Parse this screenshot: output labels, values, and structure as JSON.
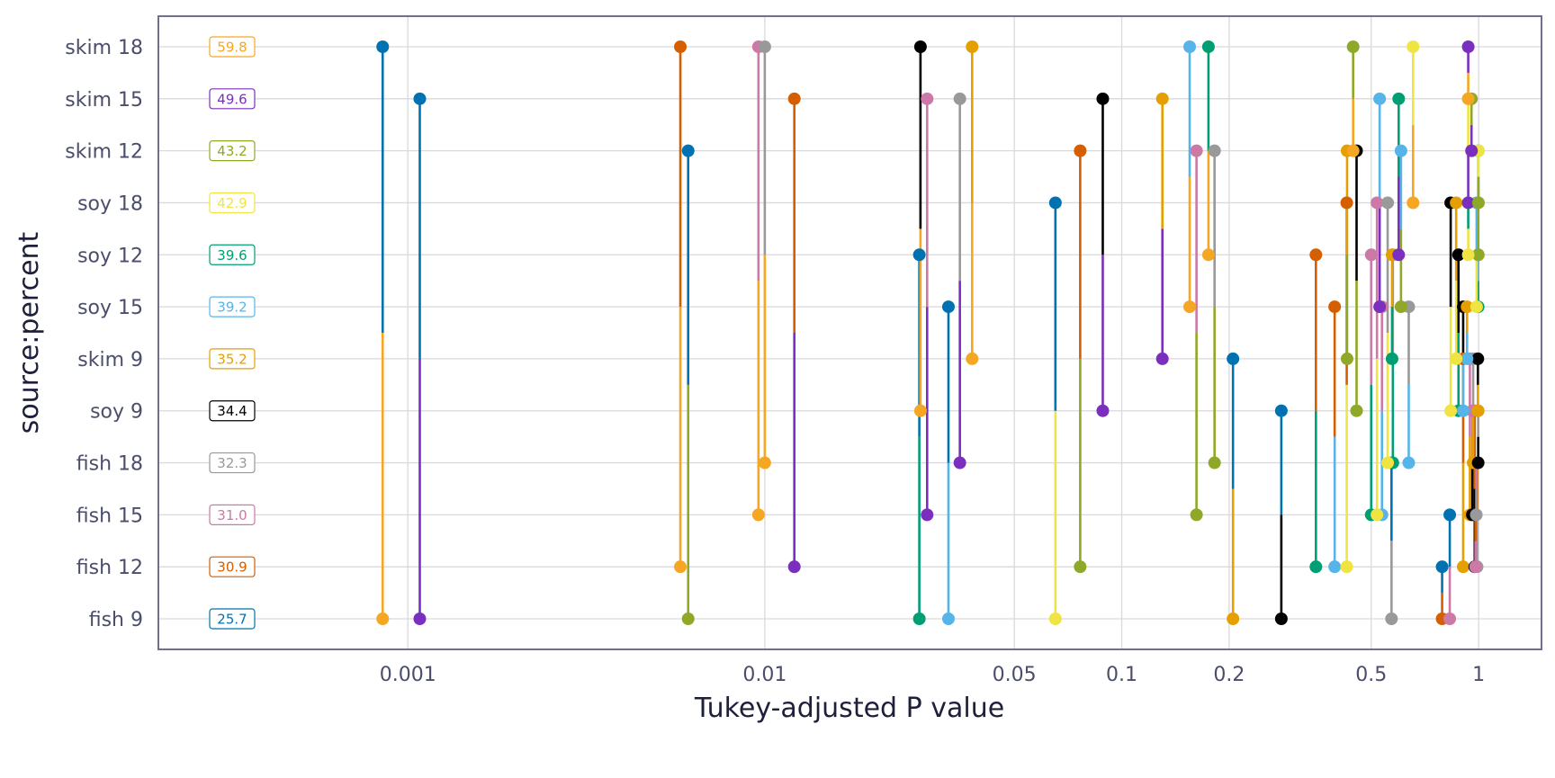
{
  "chart_data": {
    "type": "pairwise-p-value-plot",
    "xlabel": "Tukey-adjusted P value",
    "ylabel": "source:percent",
    "x_scale": "log",
    "xlim": [
      0.0002,
      1.5
    ],
    "x_ticks": [
      0.001,
      0.01,
      0.05,
      0.1,
      0.2,
      0.5,
      1
    ],
    "x_tick_labels": [
      "0.001",
      "0.01",
      "0.05",
      "0.1",
      "0.2",
      "0.5",
      "1"
    ],
    "grid": true,
    "levels": [
      {
        "name": "fish 9",
        "mean": "25.7",
        "color": "#0072B2"
      },
      {
        "name": "fish 12",
        "mean": "30.9",
        "color": "#D55E00"
      },
      {
        "name": "fish 15",
        "mean": "31.0",
        "color": "#CC79A7"
      },
      {
        "name": "fish 18",
        "mean": "32.3",
        "color": "#999999"
      },
      {
        "name": "soy 9",
        "mean": "34.4",
        "color": "#000000"
      },
      {
        "name": "skim 9",
        "mean": "35.2",
        "color": "#E69F00"
      },
      {
        "name": "soy 15",
        "mean": "39.2",
        "color": "#56B4E9"
      },
      {
        "name": "soy 12",
        "mean": "39.6",
        "color": "#009E73"
      },
      {
        "name": "soy 18",
        "mean": "42.9",
        "color": "#F0E442"
      },
      {
        "name": "skim 12",
        "mean": "43.2",
        "color": "#8FA827"
      },
      {
        "name": "skim 15",
        "mean": "49.6",
        "color": "#7B2FBE"
      },
      {
        "name": "skim 18",
        "mean": "59.8",
        "color": "#F5A623"
      }
    ],
    "pairs": [
      {
        "a": 0,
        "b": 11,
        "p": 0.00085
      },
      {
        "a": 0,
        "b": 10,
        "p": 0.00108
      },
      {
        "a": 0,
        "b": 9,
        "p": 0.0061
      },
      {
        "a": 0,
        "b": 7,
        "p": 0.0271
      },
      {
        "a": 0,
        "b": 6,
        "p": 0.0327
      },
      {
        "a": 0,
        "b": 8,
        "p": 0.0652
      },
      {
        "a": 0,
        "b": 5,
        "p": 0.205
      },
      {
        "a": 0,
        "b": 4,
        "p": 0.28
      },
      {
        "a": 0,
        "b": 3,
        "p": 0.57
      },
      {
        "a": 0,
        "b": 1,
        "p": 0.79
      },
      {
        "a": 0,
        "b": 2,
        "p": 0.83
      },
      {
        "a": 1,
        "b": 11,
        "p": 0.0058
      },
      {
        "a": 1,
        "b": 10,
        "p": 0.0121
      },
      {
        "a": 1,
        "b": 9,
        "p": 0.0765
      },
      {
        "a": 1,
        "b": 7,
        "p": 0.35
      },
      {
        "a": 1,
        "b": 6,
        "p": 0.395
      },
      {
        "a": 1,
        "b": 8,
        "p": 0.427
      },
      {
        "a": 1,
        "b": 5,
        "p": 0.905
      },
      {
        "a": 1,
        "b": 4,
        "p": 0.975
      },
      {
        "a": 1,
        "b": 3,
        "p": 0.99
      },
      {
        "a": 1,
        "b": 2,
        "p": 0.98
      },
      {
        "a": 2,
        "b": 11,
        "p": 0.0096
      },
      {
        "a": 2,
        "b": 10,
        "p": 0.0285
      },
      {
        "a": 2,
        "b": 9,
        "p": 0.162
      },
      {
        "a": 2,
        "b": 7,
        "p": 0.5
      },
      {
        "a": 2,
        "b": 6,
        "p": 0.536
      },
      {
        "a": 2,
        "b": 8,
        "p": 0.519
      },
      {
        "a": 2,
        "b": 5,
        "p": 0.945
      },
      {
        "a": 2,
        "b": 4,
        "p": 0.96
      },
      {
        "a": 2,
        "b": 3,
        "p": 0.985
      },
      {
        "a": 3,
        "b": 11,
        "p": 0.01
      },
      {
        "a": 3,
        "b": 10,
        "p": 0.0352
      },
      {
        "a": 3,
        "b": 9,
        "p": 0.182
      },
      {
        "a": 3,
        "b": 7,
        "p": 0.575
      },
      {
        "a": 3,
        "b": 6,
        "p": 0.637
      },
      {
        "a": 3,
        "b": 8,
        "p": 0.556
      },
      {
        "a": 3,
        "b": 5,
        "p": 0.965
      },
      {
        "a": 3,
        "b": 4,
        "p": 0.997
      },
      {
        "a": 4,
        "b": 11,
        "p": 0.0273
      },
      {
        "a": 4,
        "b": 10,
        "p": 0.0885
      },
      {
        "a": 4,
        "b": 9,
        "p": 0.455
      },
      {
        "a": 4,
        "b": 7,
        "p": 0.878
      },
      {
        "a": 4,
        "b": 6,
        "p": 0.905
      },
      {
        "a": 4,
        "b": 8,
        "p": 0.835
      },
      {
        "a": 4,
        "b": 5,
        "p": 0.995
      },
      {
        "a": 5,
        "b": 11,
        "p": 0.0381
      },
      {
        "a": 5,
        "b": 10,
        "p": 0.13
      },
      {
        "a": 5,
        "b": 9,
        "p": 0.428
      },
      {
        "a": 5,
        "b": 7,
        "p": 0.572
      },
      {
        "a": 5,
        "b": 6,
        "p": 0.928
      },
      {
        "a": 5,
        "b": 8,
        "p": 0.865
      },
      {
        "a": 6,
        "b": 11,
        "p": 0.155
      },
      {
        "a": 6,
        "b": 10,
        "p": 0.528
      },
      {
        "a": 6,
        "b": 9,
        "p": 0.606
      },
      {
        "a": 6,
        "b": 7,
        "p": 0.997
      },
      {
        "a": 6,
        "b": 8,
        "p": 0.987
      },
      {
        "a": 7,
        "b": 11,
        "p": 0.175
      },
      {
        "a": 7,
        "b": 10,
        "p": 0.597
      },
      {
        "a": 7,
        "b": 9,
        "p": 0.998
      },
      {
        "a": 7,
        "b": 8,
        "p": 0.935
      },
      {
        "a": 8,
        "b": 11,
        "p": 0.655
      },
      {
        "a": 8,
        "b": 10,
        "p": 0.935
      },
      {
        "a": 8,
        "b": 9,
        "p": 0.999
      },
      {
        "a": 9,
        "b": 11,
        "p": 0.445
      },
      {
        "a": 9,
        "b": 10,
        "p": 0.955
      },
      {
        "a": 10,
        "b": 11,
        "p": 0.935
      }
    ]
  }
}
